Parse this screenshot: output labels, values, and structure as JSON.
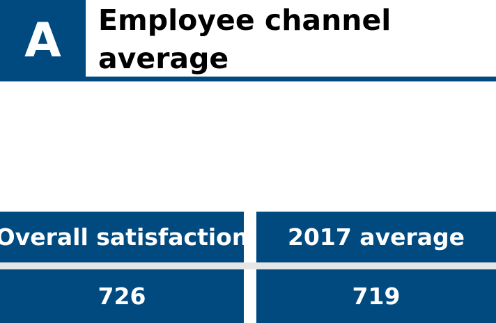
{
  "header": {
    "grade": "A",
    "title": "Employee channel average"
  },
  "stats": {
    "overall_label": "Overall satisfaction",
    "overall_value": "726",
    "average_label": "2017 average",
    "average_value": "719"
  },
  "colors": {
    "brand_blue": "#004a80",
    "divider_gray": "#e6e6e6"
  }
}
